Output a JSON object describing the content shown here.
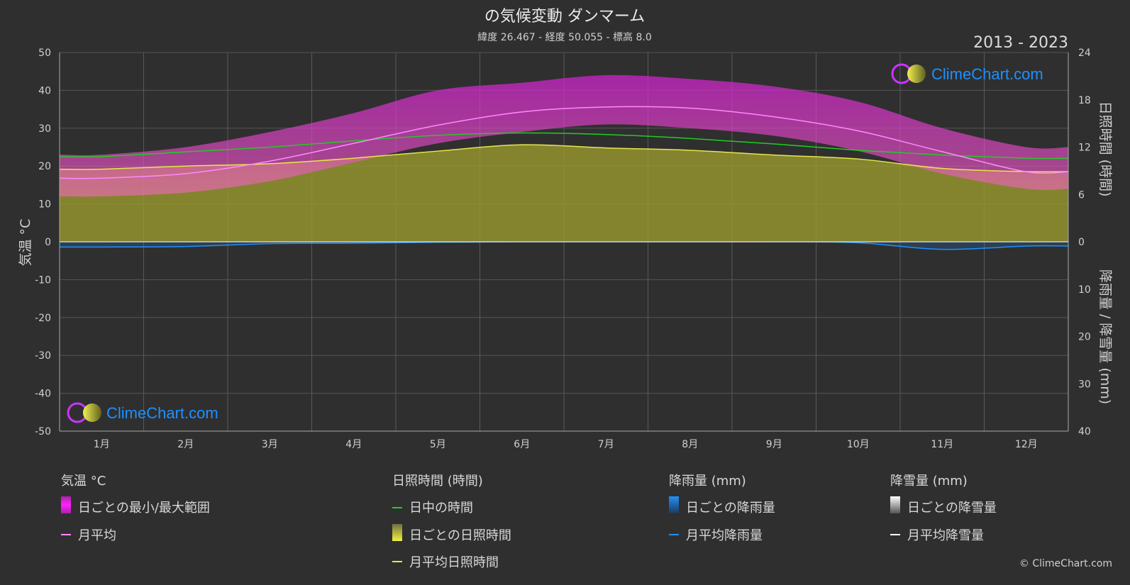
{
  "title": "の気候変動 ダンマーム",
  "subtitle": "緯度 26.467 - 経度 50.055 - 標高 8.0",
  "period": "2013 - 2023",
  "watermark": "ClimeChart.com",
  "copyright": "© ClimeChart.com",
  "chart_data": {
    "type": "area",
    "x_categories": [
      "1月",
      "2月",
      "3月",
      "4月",
      "5月",
      "6月",
      "7月",
      "8月",
      "9月",
      "10月",
      "11月",
      "12月"
    ],
    "y_left": {
      "label": "気温 °C",
      "range": [
        -50,
        50
      ],
      "ticks": [
        50,
        40,
        30,
        20,
        10,
        0,
        -10,
        -20,
        -30,
        -40,
        -50
      ]
    },
    "y_right_top": {
      "label": "日照時間 (時間)",
      "range": [
        0,
        24
      ],
      "ticks": [
        24,
        18,
        12,
        6,
        0
      ]
    },
    "y_right_bottom": {
      "label": "降雨量 / 降雪量 (mm)",
      "range": [
        0,
        40
      ],
      "ticks": [
        0,
        10,
        20,
        30,
        40
      ]
    },
    "grid": true,
    "series": [
      {
        "name": "日中の時間",
        "unit": "hours",
        "color": "#22cc22",
        "values": [
          10.8,
          11.4,
          12.0,
          12.8,
          13.5,
          13.8,
          13.6,
          13.1,
          12.4,
          11.6,
          11.0,
          10.6
        ]
      },
      {
        "name": "月平均日照時間",
        "unit": "hours",
        "color": "#e6e64a",
        "values": [
          9.2,
          9.6,
          9.9,
          10.6,
          11.5,
          12.3,
          11.9,
          11.6,
          11.0,
          10.5,
          9.3,
          8.9
        ]
      },
      {
        "name": "月平均",
        "unit": "°C",
        "color": "#ff88ff",
        "values": [
          16.8,
          18.0,
          21.3,
          26.0,
          30.8,
          34.3,
          35.6,
          35.3,
          33.0,
          29.3,
          23.8,
          18.5
        ]
      },
      {
        "name": "日ごとの最小/最大範囲",
        "unit": "°C",
        "min": [
          12,
          13,
          16,
          21,
          26,
          29,
          31,
          30,
          28,
          24,
          18,
          14
        ],
        "max": [
          23,
          25,
          29,
          34,
          40,
          42,
          44,
          43,
          41,
          37,
          30,
          25
        ]
      },
      {
        "name": "月平均降雨量",
        "unit": "mm",
        "color": "#1e90ff",
        "values": [
          1.1,
          1.0,
          0.4,
          0.3,
          0.1,
          0.0,
          0.0,
          0.0,
          0.0,
          0.2,
          1.6,
          0.9
        ]
      },
      {
        "name": "月平均降雪量",
        "unit": "mm",
        "color": "#ffffff",
        "values": [
          0,
          0,
          0,
          0,
          0,
          0,
          0,
          0,
          0,
          0,
          0,
          0
        ]
      }
    ]
  },
  "legend": {
    "temp": {
      "header": "気温 °C",
      "items": [
        "日ごとの最小/最大範囲",
        "月平均"
      ]
    },
    "sun": {
      "header": "日照時間 (時間)",
      "items": [
        "日中の時間",
        "日ごとの日照時間",
        "月平均日照時間"
      ]
    },
    "rain": {
      "header": "降雨量 (mm)",
      "items": [
        "日ごとの降雨量",
        "月平均降雨量"
      ]
    },
    "snow": {
      "header": "降雪量 (mm)",
      "items": [
        "日ごとの降雪量",
        "月平均降雪量"
      ]
    }
  }
}
